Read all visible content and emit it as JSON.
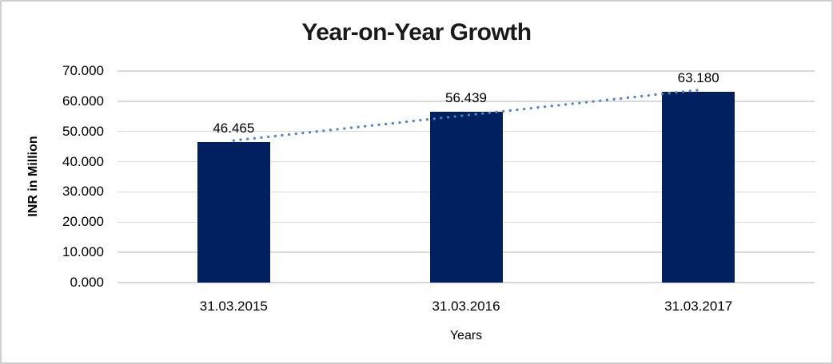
{
  "chart_data": {
    "type": "bar",
    "title": "Year-on-Year Growth",
    "categories": [
      "31.03.2015",
      "31.03.2016",
      "31.03.2017"
    ],
    "values": [
      46.465,
      56.439,
      63.18
    ],
    "data_labels": [
      "46.465",
      "56.439",
      "63.180"
    ],
    "xlabel": "Years",
    "ylabel": "INR in Million",
    "ylim": [
      0,
      70
    ],
    "ytick_step": 10,
    "ytick_labels": [
      "0.000",
      "10.000",
      "20.000",
      "30.000",
      "40.000",
      "50.000",
      "60.000",
      "70.000"
    ],
    "grid": "horizontal",
    "legend": "none",
    "trendline": {
      "type": "linear",
      "style": "dotted"
    },
    "colors": {
      "bar": "#002060",
      "trendline": "#4a86c8",
      "gridline": "#d9d9d9",
      "text": "#000000",
      "title_text": "#1a1a1a",
      "border": "#d0d0d0"
    }
  }
}
